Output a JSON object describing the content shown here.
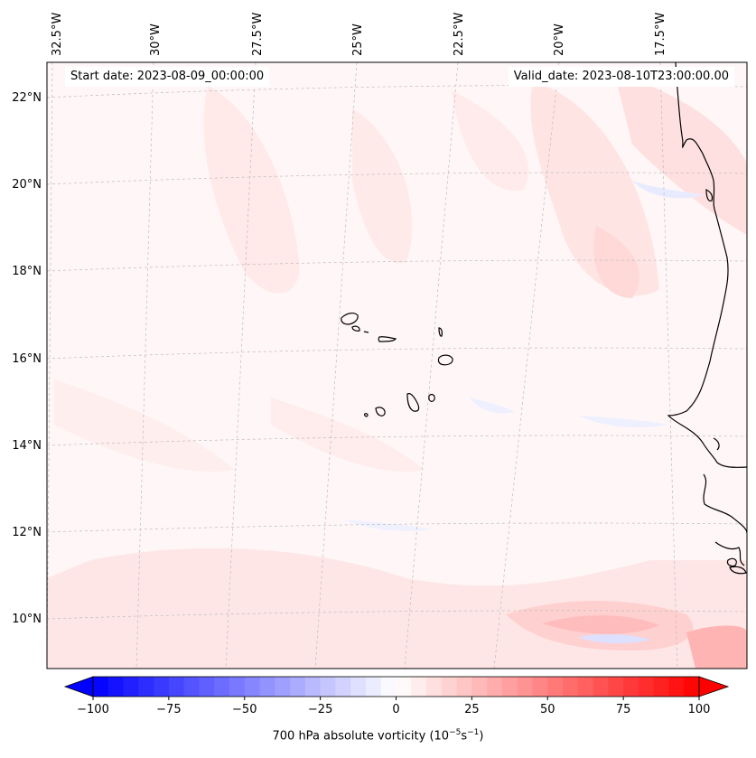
{
  "map": {
    "start_date": "Start date: 2023-08-09_00:00:00",
    "valid_date": "Valid_date: 2023-08-10T23:00:00.00",
    "lon_ticks": [
      "32.5°W",
      "30°W",
      "27.5°W",
      "25°W",
      "22.5°W",
      "20°W",
      "17.5°W"
    ],
    "lat_ticks": [
      "22°N",
      "20°N",
      "18°N",
      "16°N",
      "14°N",
      "12°N",
      "10°N"
    ],
    "features": [
      "Cape Verde Islands",
      "West African coastline (Mauritania, Senegal, Gambia, Guinea-Bissau)"
    ]
  },
  "colorbar": {
    "label_text": "700 hPa absolute vorticity (10",
    "label_exp1": "−5",
    "label_mid": "s",
    "label_exp2": "−1",
    "label_close": ")",
    "tick_labels": [
      "−100",
      "−75",
      "−50",
      "−25",
      "0",
      "25",
      "50",
      "75",
      "100"
    ],
    "min": -100,
    "max": 100,
    "levels": 40,
    "colors": {
      "negative": "#0000ff",
      "zero": "#ffffff",
      "positive": "#ff0000"
    }
  }
}
